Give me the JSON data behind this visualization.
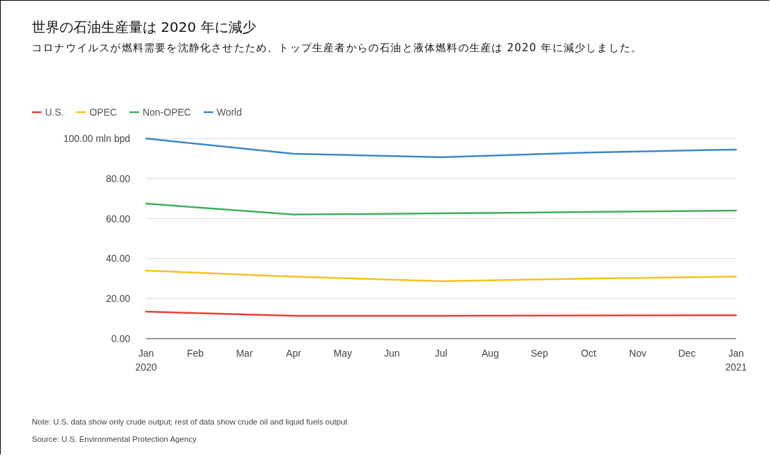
{
  "chart_data": {
    "type": "line",
    "title": "世界の石油生産量は 2020 年に減少",
    "subtitle": "コロナウイルスが燃料需要を沈静化させたため、トップ生産者からの石油と液体燃料の生産は 2020 年に減少しました。",
    "x": [
      "2020-01",
      "2020-04",
      "2020-07",
      "2020-10",
      "2021-01"
    ],
    "series": [
      {
        "name": "U.S.",
        "color": "#e8403a",
        "values": [
          13.5,
          11.4,
          11.4,
          11.6,
          11.7
        ]
      },
      {
        "name": "OPEC",
        "color": "#f5c21b",
        "values": [
          34,
          31,
          28.7,
          30,
          31
        ]
      },
      {
        "name": "Non-OPEC",
        "color": "#3fae5a",
        "values": [
          67.5,
          62,
          62.6,
          63.3,
          64
        ]
      },
      {
        "name": "World",
        "color": "#3a87c8",
        "values": [
          100,
          92.4,
          90.7,
          93,
          94.5
        ]
      }
    ],
    "xlim": [
      "2020-01",
      "2021-01"
    ],
    "xticks": [
      {
        "value": "2020-01",
        "label": "Jan\n2020"
      },
      {
        "value": "2020-02",
        "label": "Feb"
      },
      {
        "value": "2020-03",
        "label": "Mar"
      },
      {
        "value": "2020-04",
        "label": "Apr"
      },
      {
        "value": "2020-05",
        "label": "May"
      },
      {
        "value": "2020-06",
        "label": "Jun"
      },
      {
        "value": "2020-07",
        "label": "Jul"
      },
      {
        "value": "2020-08",
        "label": "Aug"
      },
      {
        "value": "2020-09",
        "label": "Sep"
      },
      {
        "value": "2020-10",
        "label": "Oct"
      },
      {
        "value": "2020-11",
        "label": "Nov"
      },
      {
        "value": "2020-12",
        "label": "Dec"
      },
      {
        "value": "2021-01",
        "label": "Jan\n2021"
      }
    ],
    "ylim": [
      0,
      100
    ],
    "yticks": [
      {
        "value": 0,
        "label": "0.00"
      },
      {
        "value": 20,
        "label": "20.00"
      },
      {
        "value": 40,
        "label": "40.00"
      },
      {
        "value": 60,
        "label": "60.00"
      },
      {
        "value": 80,
        "label": "80.00"
      },
      {
        "value": 100,
        "label": "100.00 mln bpd"
      }
    ],
    "grid": "y",
    "legend": "top left",
    "line_style": "solid",
    "marker": "none",
    "annotations": [
      "Note: U.S. data show only crude output; rest of data show crude oil and liquid fuels output",
      "Source: U.S. Environmental Protection Agency"
    ]
  }
}
